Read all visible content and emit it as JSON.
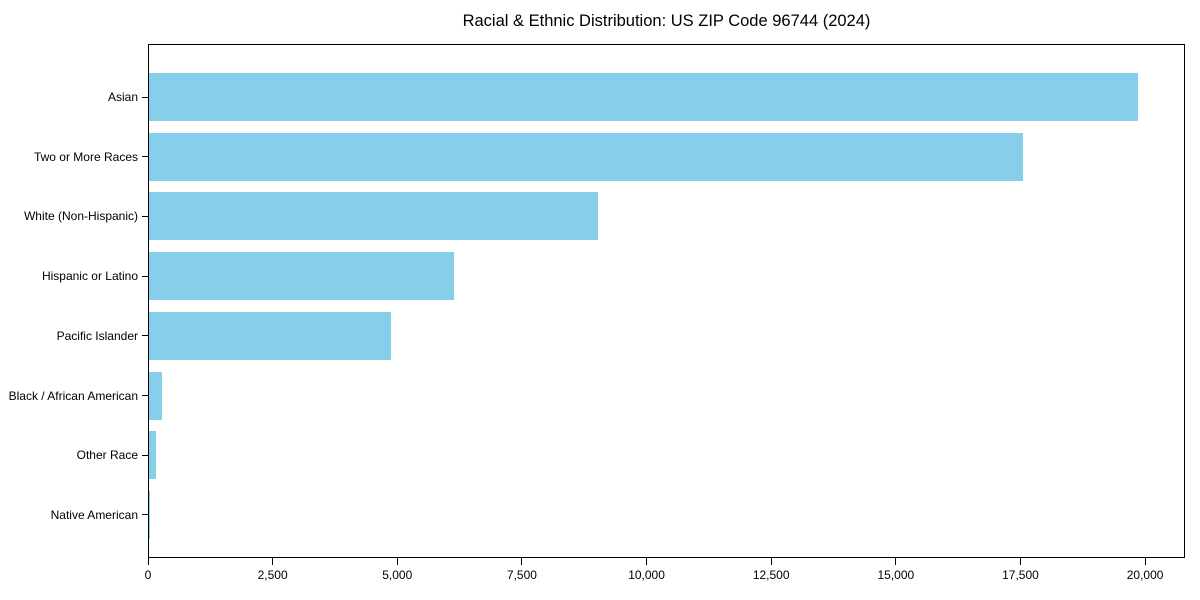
{
  "chart_data": {
    "type": "bar",
    "orientation": "horizontal",
    "title": "Racial & Ethnic Distribution: US ZIP Code 96744 (2024)",
    "categories": [
      "Asian",
      "Two or More Races",
      "White (Non-Hispanic)",
      "Hispanic or Latino",
      "Pacific Islander",
      "Black / African American",
      "Other Race",
      "Native American"
    ],
    "values": [
      19840,
      17530,
      9010,
      6120,
      4855,
      260,
      140,
      25
    ],
    "xlabel": "",
    "ylabel": "",
    "xlim": [
      0,
      20800
    ],
    "xticks": [
      0,
      2500,
      5000,
      7500,
      10000,
      12500,
      15000,
      17500,
      20000
    ],
    "xtick_labels": [
      "0",
      "2,500",
      "5,000",
      "7,500",
      "10,000",
      "12,500",
      "15,000",
      "17,500",
      "20,000"
    ],
    "bar_color": "#87CEEB",
    "axis_color": "#000000",
    "grid": false,
    "legend": null
  }
}
